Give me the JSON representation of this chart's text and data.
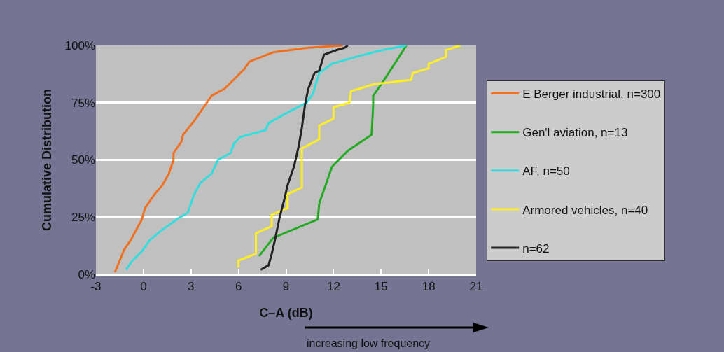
{
  "chart_data": {
    "type": "line",
    "xlabel": "C–A (dB)",
    "ylabel": "Cumulative Distribution",
    "annotations": [
      "increasing low frequency"
    ],
    "xlim": [
      -3,
      21
    ],
    "xticks": [
      -3,
      0,
      3,
      6,
      9,
      12,
      15,
      18,
      21
    ],
    "ylim": [
      0,
      100
    ],
    "yticks": [
      {
        "value": 0,
        "label": "0%"
      },
      {
        "value": 25,
        "label": "25%"
      },
      {
        "value": 50,
        "label": "50%"
      },
      {
        "value": 75,
        "label": "75%"
      },
      {
        "value": 100,
        "label": "100%"
      }
    ],
    "grid": "y",
    "legend": "right",
    "marker": "none",
    "line_style": "solid",
    "series": [
      {
        "name": "E Berger industrial, n=300",
        "color": "#f07020",
        "x": [
          -1.8,
          -1.2,
          -0.8,
          -0.1,
          0.1,
          0.7,
          1.2,
          1.6,
          1.9,
          1.9,
          2.4,
          2.5,
          3.2,
          3.9,
          4.3,
          5.1,
          5.7,
          6.4,
          6.7,
          8.2,
          10.4,
          12.6
        ],
        "values": [
          1,
          11,
          15,
          24,
          29,
          35,
          39,
          44,
          50,
          53,
          58,
          61,
          67,
          74,
          78,
          81,
          85,
          90,
          93,
          97,
          99,
          100
        ]
      },
      {
        "name": "Gen'l aviation, n=13",
        "color": "#22aa22",
        "x": [
          7.3,
          8.2,
          11.0,
          11.1,
          11.9,
          12.9,
          14.4,
          14.5,
          14.5,
          15.1,
          16.6
        ],
        "values": [
          8,
          16,
          24,
          31,
          47,
          54,
          61,
          74,
          78,
          84,
          100
        ]
      },
      {
        "name": "AF, n=50",
        "color": "#33dddd",
        "x": [
          -1.1,
          -0.7,
          -0.1,
          0.4,
          1.1,
          2.1,
          2.8,
          3.2,
          3.6,
          4.3,
          4.7,
          5.5,
          5.7,
          6.1,
          7.7,
          7.9,
          8.9,
          10.3,
          10.7,
          11.1,
          11.9,
          13.4,
          15.1,
          16.6
        ],
        "values": [
          2,
          6,
          10,
          15,
          19,
          24,
          27,
          35,
          40,
          44,
          50,
          53,
          57,
          60,
          63,
          66,
          70,
          75,
          79,
          88,
          92,
          95,
          98,
          100
        ]
      },
      {
        "name": "Armored vehicles, n=40",
        "color": "#ffee22",
        "x": [
          6.0,
          6.0,
          7.1,
          7.1,
          8.1,
          8.1,
          9.1,
          9.1,
          10.0,
          10.0,
          11.1,
          11.1,
          12.0,
          12.0,
          13.0,
          13.1,
          14.5,
          16.9,
          17.0,
          18.0,
          18.0,
          19.1,
          19.1,
          20.0
        ],
        "values": [
          3,
          6,
          9,
          18,
          21,
          26,
          29,
          35,
          38,
          55,
          59,
          65,
          68,
          73,
          75,
          80,
          83,
          85,
          88,
          90,
          92,
          95,
          98,
          100
        ]
      },
      {
        "name": "n=62",
        "color": "#222222",
        "x": [
          7.4,
          7.9,
          8.1,
          8.3,
          8.6,
          8.9,
          9.1,
          9.5,
          9.8,
          10.0,
          10.2,
          10.4,
          10.8,
          11.1,
          11.4,
          12.2,
          12.7,
          12.9
        ],
        "values": [
          2,
          4,
          9,
          15,
          25,
          33,
          39,
          47,
          56,
          64,
          74,
          81,
          88,
          89,
          96,
          98,
          99,
          100
        ]
      }
    ]
  }
}
